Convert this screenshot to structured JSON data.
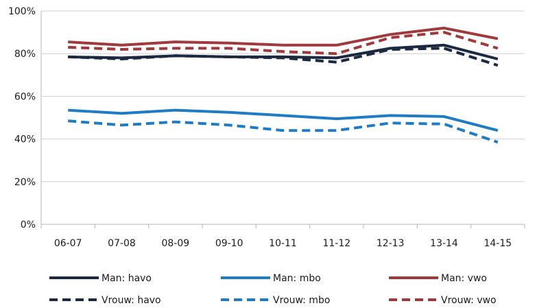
{
  "chart_data": {
    "type": "line",
    "title": "",
    "xlabel": "",
    "ylabel": "",
    "ylim": [
      0,
      100
    ],
    "yticks": [
      "0%",
      "20%",
      "40%",
      "60%",
      "80%",
      "100%"
    ],
    "grid": "horizontal",
    "legend_position": "bottom",
    "categories": [
      "06-07",
      "07-08",
      "08-09",
      "09-10",
      "10-11",
      "11-12",
      "12-13",
      "13-14",
      "14-15"
    ],
    "series": [
      {
        "name": "Man: havo",
        "color": "#1b2a41",
        "style": "solid",
        "values": [
          78.5,
          78,
          79,
          78.5,
          78.5,
          78,
          82.5,
          84,
          77.5
        ]
      },
      {
        "name": "Man: mbo",
        "color": "#1f7bc4",
        "style": "solid",
        "values": [
          53.5,
          52,
          53.5,
          52.5,
          51,
          49.5,
          51,
          50.5,
          44
        ]
      },
      {
        "name": "Man: vwo",
        "color": "#a0393b",
        "style": "solid",
        "values": [
          85.5,
          84,
          85.5,
          85,
          84,
          84,
          89,
          92,
          87
        ]
      },
      {
        "name": "Vrouw: havo",
        "color": "#1b2a41",
        "style": "dashed",
        "values": [
          78.5,
          77.5,
          79,
          78.5,
          78,
          76,
          82,
          82.5,
          74.5
        ]
      },
      {
        "name": "Vrouw: mbo",
        "color": "#1f7bc4",
        "style": "dashed",
        "values": [
          48.5,
          46.5,
          48,
          46.5,
          44,
          44,
          47.5,
          47,
          38.5
        ]
      },
      {
        "name": "Vrouw: vwo",
        "color": "#a0393b",
        "style": "dashed",
        "values": [
          83,
          82,
          82.5,
          82.5,
          81,
          80,
          87.5,
          90,
          82.5
        ]
      }
    ]
  }
}
